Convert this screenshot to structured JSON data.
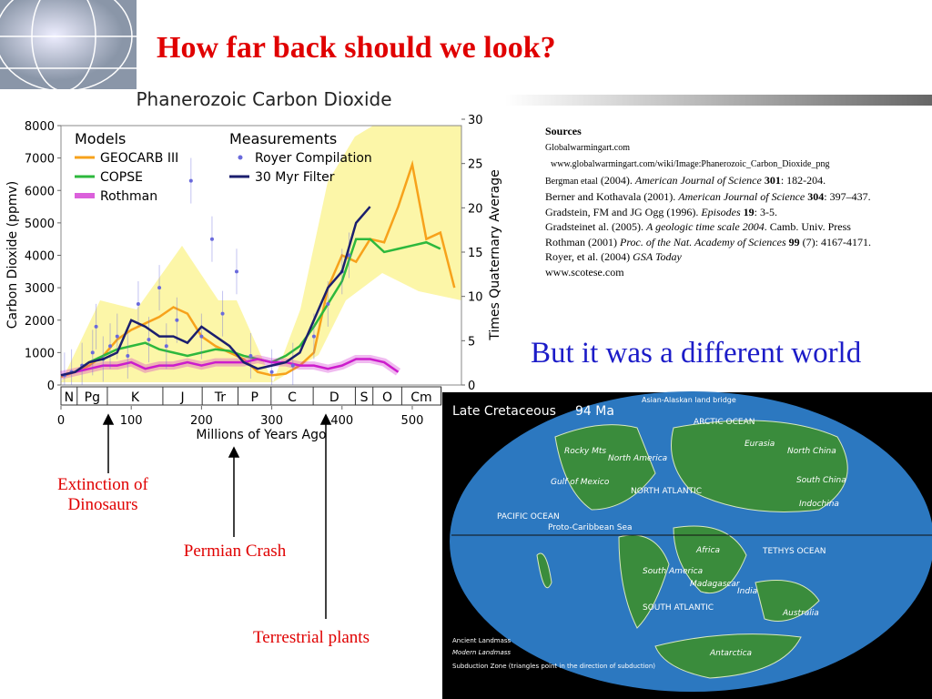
{
  "title": "How far back should we look?",
  "chart_data": {
    "type": "line",
    "title": "Phanerozoic Carbon Dioxide",
    "ylabel": "Carbon Dioxide (ppmv)",
    "y2label": "Times Quaternary Average",
    "xlabel": "Millions of Years Ago",
    "xlim": [
      0,
      570
    ],
    "xticks": [
      0,
      100,
      200,
      300,
      400,
      500
    ],
    "ylim": [
      0,
      8000
    ],
    "yticks": [
      0,
      1000,
      2000,
      3000,
      4000,
      5000,
      6000,
      7000,
      8000
    ],
    "y2lim": [
      0,
      30
    ],
    "y2ticks": [
      0,
      5,
      10,
      15,
      20,
      25,
      30
    ],
    "legend_headings": [
      "Models",
      "Measurements"
    ],
    "periods": [
      "N",
      "Pg",
      "K",
      "J",
      "Tr",
      "P",
      "C",
      "D",
      "S",
      "O",
      "Cm"
    ],
    "period_boundaries": [
      0,
      23,
      66,
      145,
      201,
      252,
      299,
      359,
      419,
      444,
      485,
      541
    ],
    "series": [
      {
        "name": "GEOCARB III",
        "color": "#f7a21b",
        "x": [
          0,
          20,
          40,
          60,
          80,
          100,
          120,
          140,
          160,
          180,
          200,
          220,
          240,
          260,
          280,
          300,
          320,
          340,
          360,
          380,
          400,
          420,
          440,
          460,
          480,
          500,
          520,
          540,
          560
        ],
        "values": [
          250,
          400,
          600,
          900,
          1400,
          1700,
          1900,
          2100,
          2400,
          2200,
          1500,
          1200,
          1000,
          800,
          400,
          300,
          350,
          600,
          1000,
          3000,
          4000,
          3800,
          4500,
          4400,
          5500,
          6800,
          4500,
          4700,
          3000
        ]
      },
      {
        "name": "COPSE",
        "color": "#2db83d",
        "x": [
          0,
          20,
          40,
          60,
          80,
          100,
          120,
          140,
          160,
          180,
          200,
          220,
          240,
          260,
          280,
          300,
          320,
          340,
          360,
          380,
          400,
          420,
          440,
          460,
          480,
          500,
          520,
          540
        ],
        "values": [
          300,
          400,
          700,
          900,
          1100,
          1200,
          1300,
          1100,
          1000,
          900,
          1000,
          1100,
          1050,
          900,
          800,
          700,
          900,
          1200,
          1800,
          2500,
          3200,
          4500,
          4500,
          4100,
          4200,
          4300,
          4400,
          4200
        ]
      },
      {
        "name": "Rothman",
        "color": "#cc1ccc",
        "x": [
          0,
          20,
          40,
          60,
          80,
          100,
          120,
          140,
          160,
          180,
          200,
          220,
          240,
          260,
          280,
          300,
          320,
          340,
          360,
          380,
          400,
          420,
          440,
          460,
          480
        ],
        "values": [
          300,
          400,
          500,
          600,
          600,
          700,
          500,
          600,
          600,
          700,
          600,
          700,
          700,
          700,
          800,
          700,
          700,
          600,
          600,
          500,
          600,
          800,
          800,
          700,
          400
        ]
      },
      {
        "name": "Royer Compilation",
        "type": "scatter",
        "color": "#6a6adc",
        "x": [
          5,
          15,
          30,
          45,
          50,
          60,
          70,
          80,
          95,
          110,
          125,
          140,
          150,
          165,
          185,
          200,
          215,
          230,
          250,
          270,
          300,
          330,
          360,
          380,
          400,
          410
        ],
        "values": [
          300,
          400,
          600,
          1000,
          1800,
          800,
          1200,
          1500,
          900,
          2500,
          1400,
          3000,
          1200,
          2000,
          6300,
          1500,
          4500,
          2200,
          3500,
          900,
          400,
          600,
          1500,
          2500,
          3500,
          4000
        ]
      },
      {
        "name": "30 Myr Filter",
        "color": "#1b1f6e",
        "x": [
          0,
          20,
          40,
          60,
          80,
          100,
          120,
          140,
          160,
          180,
          200,
          220,
          240,
          260,
          280,
          300,
          320,
          340,
          360,
          380,
          400,
          420,
          440
        ],
        "values": [
          300,
          400,
          700,
          800,
          1000,
          2000,
          1800,
          1500,
          1500,
          1300,
          1800,
          1500,
          1200,
          700,
          500,
          600,
          700,
          1000,
          2000,
          3000,
          3500,
          5000,
          5500
        ]
      }
    ]
  },
  "annotations": [
    "Extinction of Dinosaurs",
    "Permian Crash",
    "Terrestrial plants"
  ],
  "sources": {
    "heading": "Sources",
    "lines": [
      [
        "Globalwarmingart.com"
      ],
      [
        "www.globalwarmingart.com/wiki/Image:Phanerozoic_Carbon_Dioxide_png"
      ],
      [
        "Bergman etaal",
        "(2004).",
        "American Journal of Science",
        "301",
        ": 182-204."
      ],
      [
        "Berner and Kothavala (2001).",
        "American Journal of Science",
        "304",
        ": 397–437."
      ],
      [
        "Gradstein, FM and JG Ogg (1996).",
        "Episodes",
        "19",
        ": 3-5."
      ],
      [
        "Gradsteinet al.  (2005).",
        "A geologic time scale 2004",
        ". Camb. Univ. Press"
      ],
      [
        "Rothman (2001)",
        "Proc. of the Nat. Academy of Sciences",
        "99",
        "(7): 4167-4171."
      ],
      [
        "Royer, et al. (2004)",
        "GSA Today"
      ],
      [
        "www.scotese.com"
      ]
    ]
  },
  "subtitle": "But it was a different world",
  "map": {
    "title": "Late Cretaceous",
    "age": "94 Ma",
    "labels": [
      "Asian-Alaskan land bridge",
      "ARCTIC OCEAN",
      "Eurasia",
      "North China",
      "South China",
      "Indochina",
      "Rocky Mts",
      "North America",
      "Gulf of Mexico",
      "NORTH ATLANTIC",
      "PACIFIC OCEAN",
      "Proto-Caribbean Sea",
      "Africa",
      "TETHYS OCEAN",
      "South America",
      "Madagascar",
      "India",
      "Australia",
      "SOUTH ATLANTIC",
      "Antarctica"
    ],
    "legend": [
      "Ancient Landmass",
      "Modern Landmass",
      "Subduction Zone (triangles point in the direction of subduction)"
    ]
  }
}
